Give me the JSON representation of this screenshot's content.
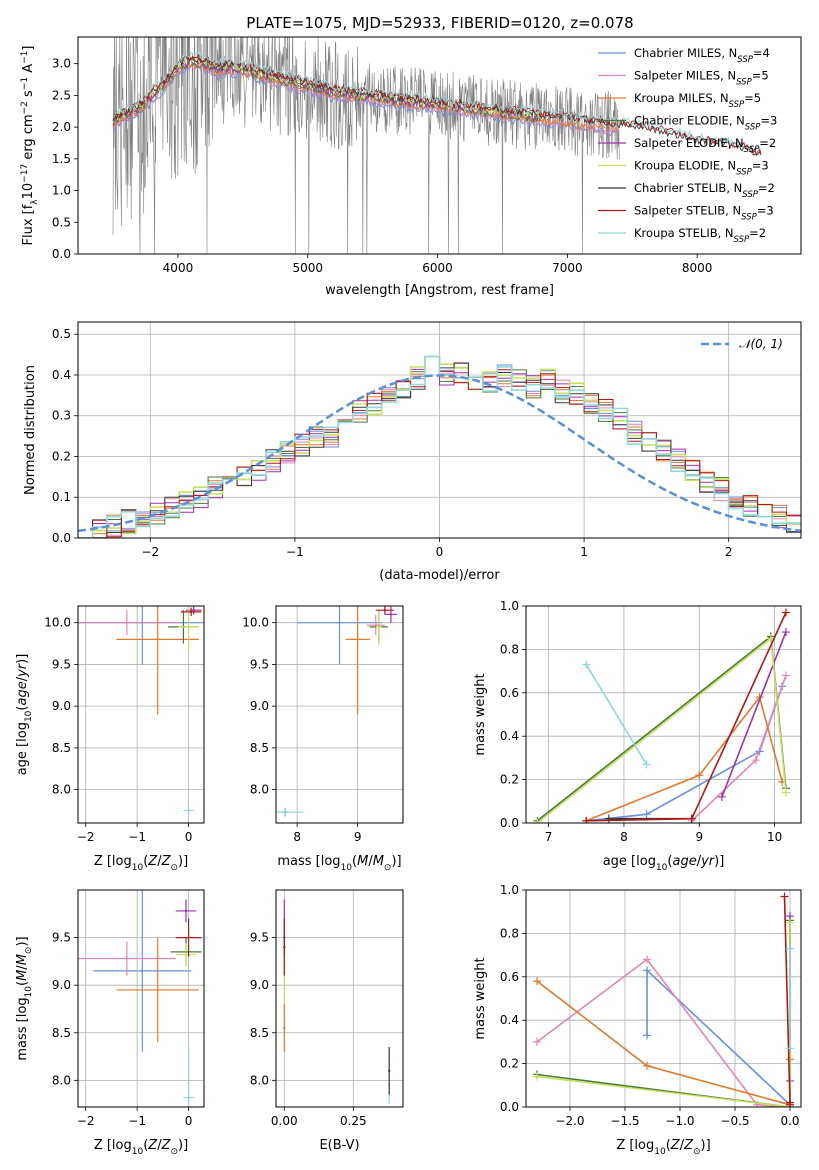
{
  "title": "PLATE=1075, MJD=52933, FIBERID=0120, z=0.078",
  "colors": {
    "chabrier_miles": "#6a8fdb",
    "salpeter_miles": "#e484b8",
    "kroupa_miles": "#e07a30",
    "chabrier_elodie": "#4a7a3a",
    "salpeter_elodie": "#a030b0",
    "kroupa_elodie": "#c8e060",
    "chabrier_stelib": "#3a3a3a",
    "salpeter_stelib": "#b01818",
    "kroupa_stelib": "#90d8d8",
    "observed": "#808080",
    "gaussian": "#5b8fd6",
    "grid": "#b0b0b0"
  },
  "chart_data": [
    {
      "id": "spectrum",
      "type": "line",
      "xlabel": "wavelength [Angstrom, rest frame]",
      "ylabel": "Flux [f_λ10^-17 erg cm^-2 s^-1 A^-1]",
      "xlim": [
        3230,
        8800
      ],
      "ylim": [
        0,
        3.42
      ],
      "xticks": [
        4000,
        5000,
        6000,
        7000,
        8000
      ],
      "yticks": [
        0.0,
        0.5,
        1.0,
        1.5,
        2.0,
        2.5,
        3.0
      ],
      "grid": false,
      "legend": "top-right",
      "legend_entries": [
        {
          "name": "Chabrier MILES, N",
          "sub": "SSP",
          "tail": "=4",
          "color_key": "chabrier_miles"
        },
        {
          "name": "Salpeter MILES, N",
          "sub": "SSP",
          "tail": "=5",
          "color_key": "salpeter_miles"
        },
        {
          "name": "Kroupa MILES, N",
          "sub": "SSP",
          "tail": "=5",
          "color_key": "kroupa_miles"
        },
        {
          "name": "Chabrier ELODIE, N",
          "sub": "SSP",
          "tail": "=3",
          "color_key": "chabrier_elodie"
        },
        {
          "name": "Salpeter ELODIE, N",
          "sub": "SSP",
          "tail": "=2",
          "color_key": "salpeter_elodie"
        },
        {
          "name": "Kroupa ELODIE, N",
          "sub": "SSP",
          "tail": "=3",
          "color_key": "kroupa_elodie"
        },
        {
          "name": "Chabrier STELIB, N",
          "sub": "SSP",
          "tail": "=2",
          "color_key": "chabrier_stelib"
        },
        {
          "name": "Salpeter STELIB, N",
          "sub": "SSP",
          "tail": "=3",
          "color_key": "salpeter_stelib"
        },
        {
          "name": "Kroupa STELIB, N",
          "sub": "SSP",
          "tail": "=2",
          "color_key": "kroupa_stelib"
        }
      ],
      "model_envelope": {
        "x": [
          3500,
          3600,
          3700,
          3800,
          3900,
          4000,
          4100,
          4200,
          4300,
          4400,
          4600,
          4800,
          5000,
          5200,
          5400,
          5600,
          5800,
          6000,
          6200,
          6400,
          6600,
          6800,
          7000,
          7200,
          7400,
          7600,
          7800,
          8000,
          8200,
          8400,
          8500
        ],
        "y": [
          2.1,
          2.2,
          2.3,
          2.5,
          2.7,
          2.95,
          3.05,
          3.0,
          2.9,
          2.95,
          2.85,
          2.75,
          2.65,
          2.55,
          2.5,
          2.45,
          2.4,
          2.35,
          2.3,
          2.25,
          2.2,
          2.15,
          2.1,
          2.05,
          2.0,
          1.95,
          1.85,
          1.75,
          1.7,
          1.6,
          1.5
        ]
      },
      "observed_range": [
        3500,
        7400
      ]
    },
    {
      "id": "residuals",
      "type": "bar",
      "xlabel": "(data-model)/error",
      "ylabel": "Normed distribution",
      "xlim": [
        -2.5,
        2.5
      ],
      "ylim": [
        0,
        0.53
      ],
      "xticks": [
        -2,
        -1,
        0,
        1,
        2
      ],
      "yticks": [
        0.0,
        0.1,
        0.2,
        0.3,
        0.4,
        0.5
      ],
      "grid": true,
      "legend": "top-right",
      "legend_label": "N(0,1)",
      "bin_width": 0.1,
      "bin_start": -2.5,
      "values": [
        0.02,
        0.02,
        0.03,
        0.04,
        0.05,
        0.06,
        0.07,
        0.09,
        0.1,
        0.12,
        0.14,
        0.15,
        0.17,
        0.19,
        0.21,
        0.23,
        0.25,
        0.25,
        0.28,
        0.31,
        0.33,
        0.35,
        0.37,
        0.39,
        0.42,
        0.4,
        0.41,
        0.39,
        0.38,
        0.4,
        0.39,
        0.37,
        0.39,
        0.36,
        0.35,
        0.33,
        0.31,
        0.29,
        0.26,
        0.24,
        0.21,
        0.19,
        0.17,
        0.14,
        0.12,
        0.1,
        0.08,
        0.07,
        0.05,
        0.04
      ]
    },
    {
      "id": "age_vs_Z",
      "type": "scatter",
      "xlabel": "Z [log10(Z/Z⊙)]",
      "ylabel": "age  [log10(age/yr)]",
      "xlim": [
        -2.15,
        0.3
      ],
      "ylim": [
        7.6,
        10.2
      ],
      "xticks": [
        -2,
        -1,
        0
      ],
      "yticks": [
        8.0,
        8.5,
        9.0,
        9.5,
        10.0
      ],
      "grid": true,
      "points": [
        {
          "x": -0.9,
          "y": 10.0,
          "xerr": 1.25,
          "yerr": 0.5,
          "color_key": "chabrier_miles"
        },
        {
          "x": -1.2,
          "y": 10.0,
          "xerr": 1.0,
          "yerr": 0.15,
          "color_key": "salpeter_miles"
        },
        {
          "x": -0.6,
          "y": 9.8,
          "xerr": 0.8,
          "yerr": 0.9,
          "color_key": "kroupa_miles"
        },
        {
          "x": -0.1,
          "y": 9.95,
          "xerr": 0.3,
          "yerr": 0.2,
          "color_key": "chabrier_elodie"
        },
        {
          "x": 0.1,
          "y": 10.15,
          "xerr": 0.15,
          "yerr": 0.05,
          "color_key": "salpeter_elodie"
        },
        {
          "x": 0.0,
          "y": 9.95,
          "xerr": 0.2,
          "yerr": 0.3,
          "color_key": "kroupa_elodie"
        },
        {
          "x": 0.0,
          "y": 7.75,
          "xerr": 0.1,
          "yerr": 0.05,
          "color_key": "kroupa_stelib"
        },
        {
          "x": 0.05,
          "y": 10.13,
          "xerr": 0.2,
          "yerr": 0.05,
          "color_key": "salpeter_stelib"
        }
      ]
    },
    {
      "id": "age_vs_mass",
      "type": "scatter",
      "xlabel": "mass [log10(M/M⊙)]",
      "ylabel": "",
      "xlim": [
        7.65,
        9.75
      ],
      "ylim": [
        7.6,
        10.2
      ],
      "xticks": [
        8,
        9
      ],
      "yticks": [
        8.0,
        8.5,
        9.0,
        9.5,
        10.0
      ],
      "grid": true,
      "points": [
        {
          "x": 8.7,
          "y": 10.0,
          "xerr": 0.7,
          "yerr": 0.5,
          "color_key": "chabrier_miles"
        },
        {
          "x": 9.3,
          "y": 9.97,
          "xerr": 0.15,
          "yerr": 0.12,
          "color_key": "salpeter_miles"
        },
        {
          "x": 9.0,
          "y": 9.8,
          "xerr": 0.2,
          "yerr": 0.9,
          "color_key": "kroupa_miles"
        },
        {
          "x": 9.35,
          "y": 9.95,
          "xerr": 0.15,
          "yerr": 0.2,
          "color_key": "chabrier_elodie"
        },
        {
          "x": 9.55,
          "y": 10.1,
          "xerr": 0.1,
          "yerr": 0.1,
          "color_key": "salpeter_elodie"
        },
        {
          "x": 9.35,
          "y": 9.95,
          "xerr": 0.05,
          "yerr": 0.2,
          "color_key": "kroupa_elodie"
        },
        {
          "x": 7.8,
          "y": 7.73,
          "xerr": 0.05,
          "yerr": 0.05,
          "color_key": "chabrier_stelib"
        },
        {
          "x": 9.45,
          "y": 10.15,
          "xerr": 0.15,
          "yerr": 0.05,
          "color_key": "salpeter_stelib"
        },
        {
          "x": 7.8,
          "y": 7.73,
          "xerr": 0.3,
          "yerr": 0.05,
          "color_key": "kroupa_stelib"
        }
      ]
    },
    {
      "id": "weight_vs_age",
      "type": "line",
      "xlabel": "age  [log10(age/yr)]",
      "ylabel": "mass weight",
      "xlim": [
        6.7,
        10.35
      ],
      "ylim": [
        0,
        1.0
      ],
      "xticks": [
        7,
        8,
        9,
        10
      ],
      "yticks": [
        0.0,
        0.2,
        0.4,
        0.6,
        0.8,
        1.0
      ],
      "grid": true,
      "series": [
        {
          "color_key": "chabrier_miles",
          "x": [
            7.5,
            8.3,
            9.8,
            10.1
          ],
          "y": [
            0.01,
            0.04,
            0.33,
            0.63
          ]
        },
        {
          "color_key": "salpeter_miles",
          "x": [
            8.9,
            9.75,
            10.15
          ],
          "y": [
            0.01,
            0.29,
            0.68
          ]
        },
        {
          "color_key": "kroupa_miles",
          "x": [
            7.5,
            9.0,
            9.8,
            10.1
          ],
          "y": [
            0.01,
            0.22,
            0.58,
            0.19
          ]
        },
        {
          "color_key": "chabrier_elodie",
          "x": [
            6.85,
            9.95,
            10.15
          ],
          "y": [
            0.01,
            0.86,
            0.16
          ]
        },
        {
          "color_key": "salpeter_elodie",
          "x": [
            9.3,
            10.15
          ],
          "y": [
            0.12,
            0.88
          ]
        },
        {
          "color_key": "kroupa_elodie",
          "x": [
            6.85,
            9.95,
            10.15
          ],
          "y": [
            0.0,
            0.85,
            0.14
          ]
        },
        {
          "color_key": "chabrier_stelib",
          "x": [
            7.8,
            8.9
          ],
          "y": [
            0.02,
            0.02
          ]
        },
        {
          "color_key": "salpeter_stelib",
          "x": [
            7.5,
            8.9,
            10.15
          ],
          "y": [
            0.01,
            0.02,
            0.97
          ]
        },
        {
          "color_key": "kroupa_stelib",
          "x": [
            7.5,
            8.3
          ],
          "y": [
            0.73,
            0.27
          ]
        }
      ]
    },
    {
      "id": "mass_vs_Z",
      "type": "scatter",
      "xlabel": "Z [log10(Z/Z⊙)]",
      "ylabel": "mass [log10(M/M⊙)]",
      "xlim": [
        -2.15,
        0.3
      ],
      "ylim": [
        7.72,
        10.0
      ],
      "xticks": [
        -2,
        -1,
        0
      ],
      "yticks": [
        8.0,
        8.5,
        9.0,
        9.5
      ],
      "grid": true,
      "points": [
        {
          "x": -0.9,
          "y": 9.15,
          "xerr": 0.95,
          "yerr": 0.85,
          "color_key": "chabrier_miles"
        },
        {
          "x": -1.2,
          "y": 9.28,
          "xerr": 0.95,
          "yerr": 0.18,
          "color_key": "salpeter_miles"
        },
        {
          "x": -0.6,
          "y": 8.95,
          "xerr": 0.8,
          "yerr": 0.55,
          "color_key": "kroupa_miles"
        },
        {
          "x": -0.05,
          "y": 9.35,
          "xerr": 0.3,
          "yerr": 0.15,
          "color_key": "chabrier_elodie"
        },
        {
          "x": -0.05,
          "y": 9.78,
          "xerr": 0.2,
          "yerr": 0.12,
          "color_key": "salpeter_elodie"
        },
        {
          "x": -0.05,
          "y": 9.32,
          "xerr": 0.2,
          "yerr": 0.12,
          "color_key": "kroupa_elodie"
        },
        {
          "x": 0.0,
          "y": 7.82,
          "xerr": 0.1,
          "yerr": 0.55,
          "color_key": "kroupa_stelib"
        },
        {
          "x": 0.0,
          "y": 9.5,
          "xerr": 0.25,
          "yerr": 0.2,
          "color_key": "salpeter_stelib"
        }
      ]
    },
    {
      "id": "mass_vs_ebv",
      "type": "scatter",
      "xlabel": "E(B-V)",
      "ylabel": "",
      "xlim": [
        -0.03,
        0.43
      ],
      "ylim": [
        7.72,
        10.0
      ],
      "xticks": [
        0.0,
        0.25
      ],
      "yticks": [
        8.0,
        8.5,
        9.0,
        9.5
      ],
      "grid": true,
      "points": [
        {
          "x": 0.0,
          "y": 9.5,
          "xerr": 0.0,
          "yerr": 0.4,
          "color_key": "salpeter_elodie"
        },
        {
          "x": 0.0,
          "y": 9.0,
          "xerr": 0.0,
          "yerr": 0.3,
          "color_key": "kroupa_elodie"
        },
        {
          "x": 0.0,
          "y": 8.55,
          "xerr": 0.0,
          "yerr": 0.25,
          "color_key": "kroupa_miles"
        },
        {
          "x": 0.0,
          "y": 9.4,
          "xerr": 0.0,
          "yerr": 0.3,
          "color_key": "salpeter_stelib"
        },
        {
          "x": 0.38,
          "y": 8.0,
          "xerr": 0.0,
          "yerr": 0.25,
          "color_key": "kroupa_stelib"
        },
        {
          "x": 0.38,
          "y": 8.1,
          "xerr": 0.0,
          "yerr": 0.25,
          "color_key": "chabrier_stelib"
        }
      ]
    },
    {
      "id": "weight_vs_Z",
      "type": "line",
      "xlabel": "Z [log10(Z/Z⊙)]",
      "ylabel": "mass weight",
      "xlim": [
        -2.4,
        0.1
      ],
      "ylim": [
        0,
        1.0
      ],
      "xticks": [
        -2.0,
        -1.5,
        -1.0,
        -0.5,
        0.0
      ],
      "yticks": [
        0.0,
        0.2,
        0.4,
        0.6,
        0.8,
        1.0
      ],
      "grid": true,
      "series": [
        {
          "color_key": "chabrier_miles",
          "x": [
            -1.3,
            -1.3,
            0.0,
            0.0
          ],
          "y": [
            0.33,
            0.63,
            0.01,
            0.0
          ]
        },
        {
          "color_key": "salpeter_miles",
          "x": [
            -2.3,
            -1.3,
            -0.3,
            0.0
          ],
          "y": [
            0.3,
            0.68,
            0.01,
            0.0
          ]
        },
        {
          "color_key": "kroupa_miles",
          "x": [
            -2.3,
            -1.3,
            0.0,
            0.0
          ],
          "y": [
            0.58,
            0.19,
            0.01,
            0.22
          ]
        },
        {
          "color_key": "chabrier_elodie",
          "x": [
            -2.3,
            0.0,
            0.0
          ],
          "y": [
            0.15,
            0.0,
            0.86
          ]
        },
        {
          "color_key": "salpeter_elodie",
          "x": [
            0.0,
            0.0
          ],
          "y": [
            0.12,
            0.88
          ]
        },
        {
          "color_key": "kroupa_elodie",
          "x": [
            -2.3,
            0.0,
            0.0
          ],
          "y": [
            0.14,
            0.0,
            0.85
          ]
        },
        {
          "color_key": "salpeter_stelib",
          "x": [
            -0.05,
            0.0,
            0.0
          ],
          "y": [
            0.97,
            0.02,
            0.01
          ]
        },
        {
          "color_key": "kroupa_stelib",
          "x": [
            0.0,
            0.0
          ],
          "y": [
            0.73,
            0.27
          ]
        }
      ]
    }
  ]
}
